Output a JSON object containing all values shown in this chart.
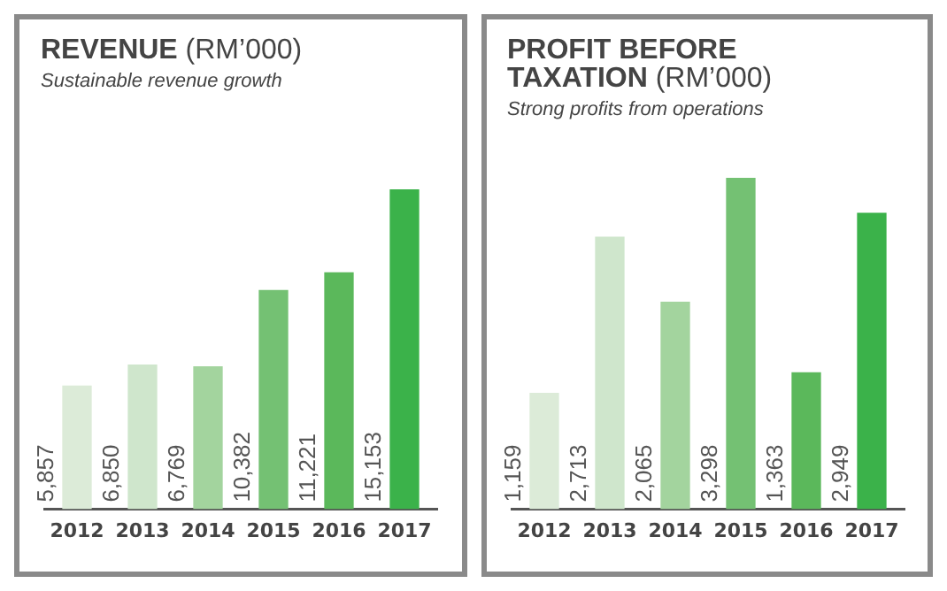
{
  "chart_data": [
    {
      "type": "bar",
      "title": "REVENUE (RM’000)",
      "subtitle": "Sustainable revenue growth",
      "categories": [
        "2012",
        "2013",
        "2014",
        "2015",
        "2016",
        "2017"
      ],
      "values": [
        5857,
        6850,
        6769,
        10382,
        11221,
        15153
      ],
      "colors": [
        "#dcebd8",
        "#cfe6cc",
        "#a3d49e",
        "#74c173",
        "#5bb85b",
        "#3bb24a"
      ],
      "data_labels": true,
      "value_labels": [
        "5,857",
        "6,850",
        "6,769",
        "10,382",
        "11,221",
        "15,153"
      ],
      "tick_labels": "x",
      "grid": false,
      "legend": false
    },
    {
      "type": "bar",
      "title": "PROFIT BEFORE TAXATION (RM’000)",
      "subtitle": "Strong profits from operations",
      "categories": [
        "2012",
        "2013",
        "2014",
        "2015",
        "2016",
        "2017"
      ],
      "values": [
        1159,
        2713,
        2065,
        3298,
        1363,
        2949
      ],
      "colors": [
        "#dcebd8",
        "#cfe6cc",
        "#a3d49e",
        "#74c173",
        "#5bb85b",
        "#3bb24a"
      ],
      "data_labels": true,
      "value_labels": [
        "1,159",
        "2,713",
        "2,065",
        "3,298",
        "1,363",
        "2,949"
      ],
      "tick_labels": "x",
      "grid": false,
      "legend": false
    }
  ]
}
